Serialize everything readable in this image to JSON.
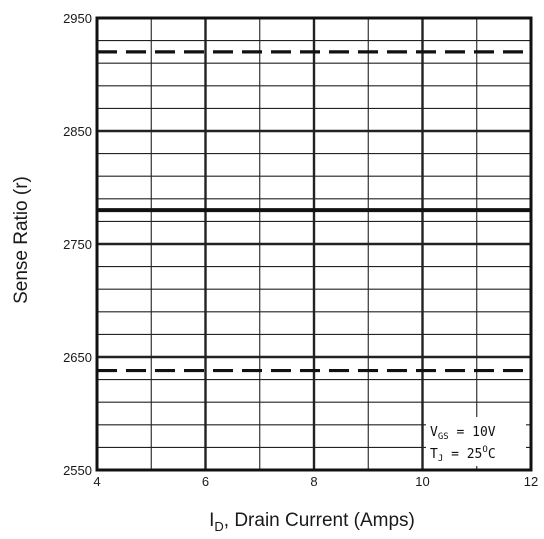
{
  "chart_data": {
    "type": "line",
    "title": "",
    "xlabel": "I",
    "xlabel_sub": "D",
    "xlabel_rest": ", Drain Current (Amps)",
    "ylabel": "Sense Ratio (r)",
    "xlim": [
      4,
      12
    ],
    "ylim": [
      2550,
      2950
    ],
    "x_ticks": [
      4,
      6,
      8,
      10,
      12
    ],
    "x_tick_labels": [
      "4",
      "6",
      "8",
      "10",
      "12"
    ],
    "y_ticks": [
      2550,
      2650,
      2750,
      2850,
      2950
    ],
    "y_tick_labels": [
      "2550",
      "2650",
      "2750",
      "2850",
      "2950"
    ],
    "x_minor_step": 1,
    "y_minor_step": 20,
    "grid": true,
    "series": [
      {
        "style": "dashed",
        "x": [
          4,
          12
        ],
        "y": [
          2920,
          2920
        ]
      },
      {
        "style": "solid",
        "x": [
          4,
          12
        ],
        "y": [
          2780,
          2780
        ]
      },
      {
        "style": "dashed",
        "x": [
          4,
          12
        ],
        "y": [
          2638,
          2638
        ]
      }
    ],
    "annotation": {
      "line1_main": "V",
      "line1_sub": "GS",
      "line1_rest": " = 10V",
      "line2_main": "T",
      "line2_sub": "J",
      "line2_rest": " = 25",
      "line2_sup": "O",
      "line2_end": "C",
      "position": "bottom-right"
    },
    "colors": {
      "line": "#111111",
      "grid": "#222222",
      "frame": "#111111"
    }
  }
}
